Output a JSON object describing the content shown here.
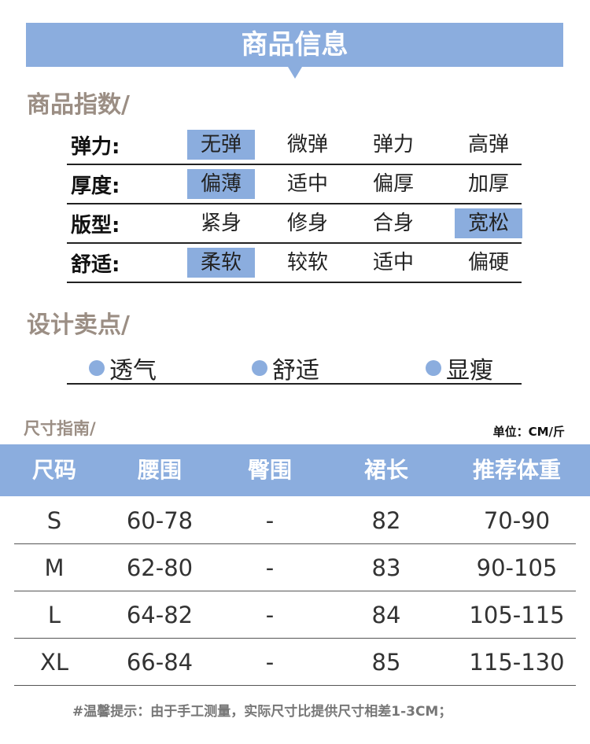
{
  "banner": {
    "title": "商品信息"
  },
  "index": {
    "title": "商品指数/",
    "rows": [
      {
        "label": "弹力:",
        "options": [
          "无弹",
          "微弹",
          "弹力",
          "高弹"
        ],
        "selected": 0
      },
      {
        "label": "厚度:",
        "options": [
          "偏薄",
          "适中",
          "偏厚",
          "加厚"
        ],
        "selected": 0
      },
      {
        "label": "版型:",
        "options": [
          "紧身",
          "修身",
          "合身",
          "宽松"
        ],
        "selected": 3
      },
      {
        "label": "舒适:",
        "options": [
          "柔软",
          "较软",
          "适中",
          "偏硬"
        ],
        "selected": 0
      }
    ]
  },
  "design": {
    "title": "设计卖点/",
    "points": [
      "透气",
      "舒适",
      "显瘦"
    ]
  },
  "size": {
    "title": "尺寸指南/",
    "unit": "单位：CM/斤",
    "headers": [
      "尺码",
      "腰围",
      "臀围",
      "裙长",
      "推荐体重"
    ],
    "rows": [
      [
        "S",
        "60-78",
        "-",
        "82",
        "70-90"
      ],
      [
        "M",
        "62-80",
        "-",
        "83",
        "90-105"
      ],
      [
        "L",
        "64-82",
        "-",
        "84",
        "105-115"
      ],
      [
        "XL",
        "66-84",
        "-",
        "85",
        "115-130"
      ]
    ]
  },
  "note": "#温馨提示：由于手工测量，实际尺寸比提供尺寸相差1-3CM；",
  "colors": {
    "accent": "#8badde",
    "section_title": "#9b8e84"
  }
}
